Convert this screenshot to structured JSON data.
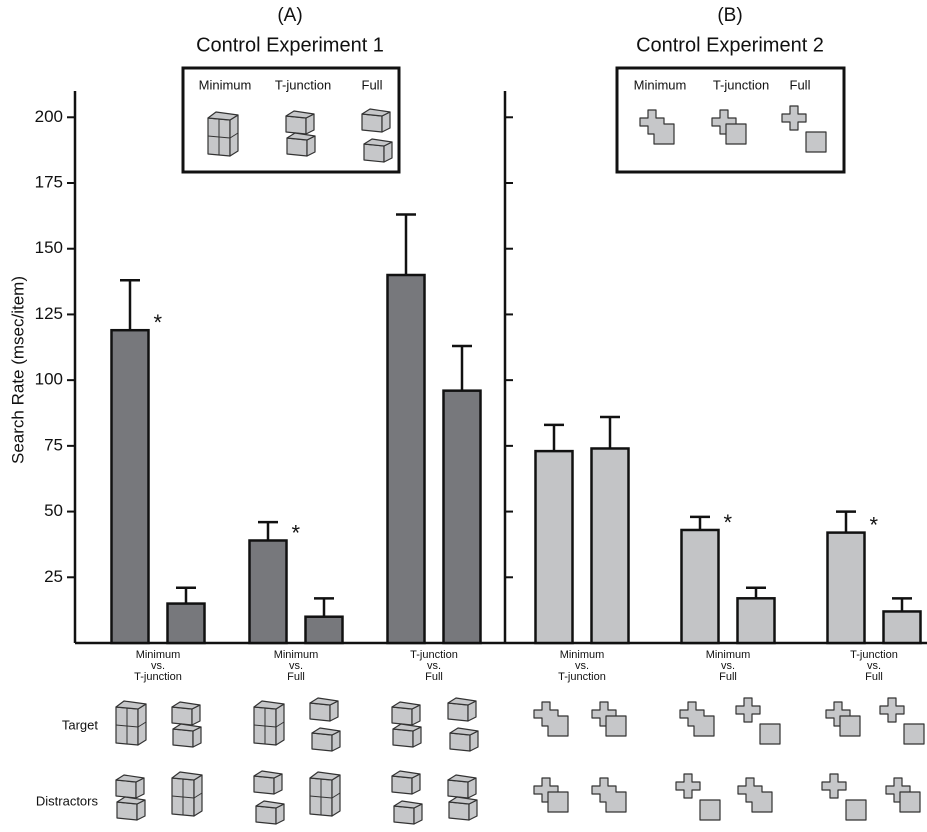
{
  "chart_data": [
    {
      "type": "bar",
      "panel_label": "(A)",
      "title": "Control Experiment 1",
      "ylabel": "Search Rate (msec/item)",
      "inset_labels": [
        "Minimum",
        "T-junction",
        "Full"
      ],
      "categories": [
        "Minimum vs. T-junction",
        "Minimum vs. Full",
        "T-junction vs. Full"
      ],
      "series": [
        {
          "color": "#77787c",
          "values": [
            119,
            39,
            140
          ],
          "errors": [
            19,
            7,
            23
          ],
          "annotations": [
            "*",
            "*",
            null
          ]
        },
        {
          "color": "#77787c",
          "values": [
            15,
            10,
            96
          ],
          "errors": [
            6,
            7,
            17
          ],
          "annotations": [
            null,
            null,
            null
          ]
        }
      ],
      "ylim": [
        0,
        210
      ],
      "yticks": [
        25,
        50,
        75,
        100,
        125,
        150,
        175,
        200
      ],
      "tick_labels": true
    },
    {
      "type": "bar",
      "panel_label": "(B)",
      "title": "Control Experiment 2",
      "inset_labels": [
        "Minimum",
        "T-junction",
        "Full"
      ],
      "categories": [
        "Minimum vs. T-junction",
        "Minimum vs. Full",
        "T-junction vs. Full"
      ],
      "series": [
        {
          "color": "#c3c4c6",
          "values": [
            73,
            43,
            42
          ],
          "errors": [
            10,
            5,
            8
          ],
          "annotations": [
            null,
            "*",
            "*"
          ]
        },
        {
          "color": "#c3c4c6",
          "values": [
            74,
            17,
            12
          ],
          "errors": [
            12,
            4,
            5
          ],
          "annotations": [
            null,
            null,
            null
          ]
        }
      ],
      "ylim": [
        0,
        210
      ],
      "yticks": [
        25,
        50,
        75,
        100,
        125,
        150,
        175,
        200
      ],
      "tick_labels": false
    }
  ],
  "row_labels": [
    "Target",
    "Distractors"
  ]
}
